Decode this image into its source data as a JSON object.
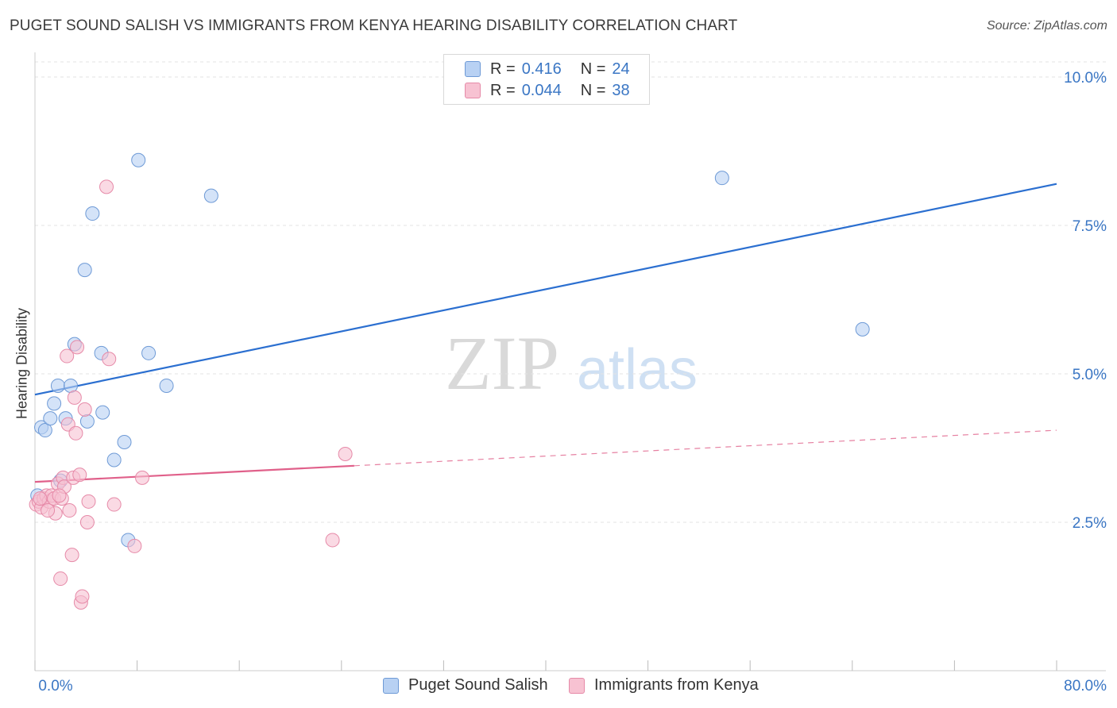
{
  "title": "PUGET SOUND SALISH VS IMMIGRANTS FROM KENYA HEARING DISABILITY CORRELATION CHART",
  "source": "Source: ZipAtlas.com",
  "watermark": {
    "zip": "ZIP",
    "atlas": "atlas"
  },
  "legend": {
    "rows": [
      {
        "r_label": "R =",
        "r_value": "0.416",
        "n_label": "N =",
        "n_value": "24"
      },
      {
        "r_label": "R =",
        "r_value": "0.044",
        "n_label": "N =",
        "n_value": "38"
      }
    ]
  },
  "colors": {
    "blue_fill": "#b8d1f3",
    "blue_stroke": "#6e9ad6",
    "blue_line": "#2b6fd0",
    "pink_fill": "#f7c2d2",
    "pink_stroke": "#e68aa8",
    "pink_line": "#e0608a",
    "tick_label": "#3a76c4",
    "grid": "#e3e3e3"
  },
  "chart_data": {
    "type": "scatter",
    "title": "PUGET SOUND SALISH VS IMMIGRANTS FROM KENYA HEARING DISABILITY CORRELATION CHART",
    "xlabel": "",
    "ylabel": "Hearing Disability",
    "xlim": [
      0,
      80
    ],
    "ylim": [
      0,
      10.5
    ],
    "x_tick_labels": [
      "0.0%",
      "80.0%"
    ],
    "y_ticks": [
      2.5,
      5.0,
      7.5,
      10.0
    ],
    "y_tick_labels": [
      "2.5%",
      "5.0%",
      "7.5%",
      "10.0%"
    ],
    "grid": true,
    "legend_position": "top-center",
    "series": [
      {
        "name": "Puget Sound Salish",
        "points": [
          [
            0.2,
            2.95
          ],
          [
            0.5,
            4.1
          ],
          [
            0.8,
            4.05
          ],
          [
            1.2,
            4.25
          ],
          [
            1.5,
            4.5
          ],
          [
            1.8,
            4.8
          ],
          [
            2.0,
            3.2
          ],
          [
            2.4,
            4.25
          ],
          [
            2.8,
            4.8
          ],
          [
            3.1,
            5.5
          ],
          [
            3.9,
            6.75
          ],
          [
            4.1,
            4.2
          ],
          [
            4.5,
            7.7
          ],
          [
            5.2,
            5.35
          ],
          [
            5.3,
            4.35
          ],
          [
            6.2,
            3.55
          ],
          [
            7.0,
            3.85
          ],
          [
            7.3,
            2.2
          ],
          [
            8.1,
            8.6
          ],
          [
            8.9,
            5.35
          ],
          [
            10.3,
            4.8
          ],
          [
            13.8,
            8.0
          ],
          [
            53.8,
            8.3
          ],
          [
            64.8,
            5.75
          ]
        ],
        "trend": {
          "x": [
            0,
            80
          ],
          "y": [
            4.65,
            8.2
          ]
        }
      },
      {
        "name": "Immigrants from Kenya",
        "points": [
          [
            0.1,
            2.8
          ],
          [
            0.3,
            2.85
          ],
          [
            0.5,
            2.75
          ],
          [
            0.7,
            2.9
          ],
          [
            0.9,
            2.95
          ],
          [
            1.1,
            2.85
          ],
          [
            1.3,
            2.95
          ],
          [
            1.5,
            2.9
          ],
          [
            1.6,
            2.65
          ],
          [
            1.8,
            3.15
          ],
          [
            2.0,
            1.55
          ],
          [
            2.1,
            2.9
          ],
          [
            2.2,
            3.25
          ],
          [
            2.3,
            3.1
          ],
          [
            2.5,
            5.3
          ],
          [
            2.6,
            4.15
          ],
          [
            2.7,
            2.7
          ],
          [
            2.9,
            1.95
          ],
          [
            3.0,
            3.25
          ],
          [
            3.1,
            4.6
          ],
          [
            3.2,
            4.0
          ],
          [
            3.3,
            5.45
          ],
          [
            3.5,
            3.3
          ],
          [
            3.6,
            1.15
          ],
          [
            3.7,
            1.25
          ],
          [
            3.9,
            4.4
          ],
          [
            4.1,
            2.5
          ],
          [
            4.2,
            2.85
          ],
          [
            5.6,
            8.15
          ],
          [
            5.8,
            5.25
          ],
          [
            6.2,
            2.8
          ],
          [
            7.8,
            2.1
          ],
          [
            8.4,
            3.25
          ],
          [
            23.3,
            2.2
          ],
          [
            24.3,
            3.65
          ],
          [
            0.4,
            2.9
          ],
          [
            1.0,
            2.7
          ],
          [
            1.9,
            2.95
          ]
        ],
        "trend": {
          "x": [
            0,
            80
          ],
          "y": [
            3.18,
            4.05
          ],
          "solid_until": 25
        }
      }
    ]
  }
}
